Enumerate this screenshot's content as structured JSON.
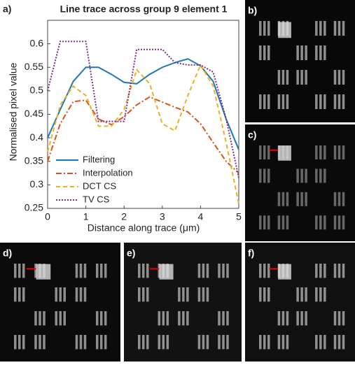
{
  "panel_labels": [
    "a)",
    "b)",
    "c)",
    "d)",
    "e)",
    "f)"
  ],
  "chart_data": {
    "type": "line",
    "title": "Line trace across group 9 element 1",
    "xlabel": "Distance along trace (μm)",
    "ylabel": "Normalised pixel value",
    "x": [
      0,
      0.33,
      0.67,
      1,
      1.33,
      1.67,
      2,
      2.33,
      2.67,
      3,
      3.33,
      3.67,
      4,
      4.33,
      4.67,
      5
    ],
    "series": [
      {
        "name": "Filtering",
        "color": "#1f77b4",
        "values": [
          0.4,
          0.46,
          0.52,
          0.55,
          0.55,
          0.535,
          0.518,
          0.515,
          0.535,
          0.55,
          0.56,
          0.568,
          0.553,
          0.52,
          0.44,
          0.375
        ]
      },
      {
        "name": "Interpolation",
        "color": "#d95319",
        "values": [
          0.35,
          0.43,
          0.477,
          0.48,
          0.44,
          0.428,
          0.445,
          0.47,
          0.487,
          0.476,
          0.465,
          0.455,
          0.43,
          0.39,
          0.35,
          0.325
        ]
      },
      {
        "name": "DCT CS",
        "color": "#edb120",
        "values": [
          0.37,
          0.47,
          0.51,
          0.49,
          0.425,
          0.425,
          0.46,
          0.545,
          0.515,
          0.43,
          0.415,
          0.49,
          0.555,
          0.51,
          0.39,
          0.26
        ]
      },
      {
        "name": "TV CS",
        "color": "#7e2f8e",
        "values": [
          0.5,
          0.605,
          0.605,
          0.605,
          0.435,
          0.435,
          0.435,
          0.588,
          0.588,
          0.588,
          0.56,
          0.555,
          0.555,
          0.54,
          0.44,
          0.315
        ]
      }
    ],
    "xlim": [
      0,
      5
    ],
    "xticks": [
      0,
      1,
      2,
      3,
      4,
      5
    ],
    "ylim": [
      0.25,
      0.65
    ],
    "yticks": [
      0.25,
      0.3,
      0.35,
      0.4,
      0.45,
      0.5,
      0.55,
      0.6
    ],
    "grid": false,
    "legend": "lower-left"
  }
}
